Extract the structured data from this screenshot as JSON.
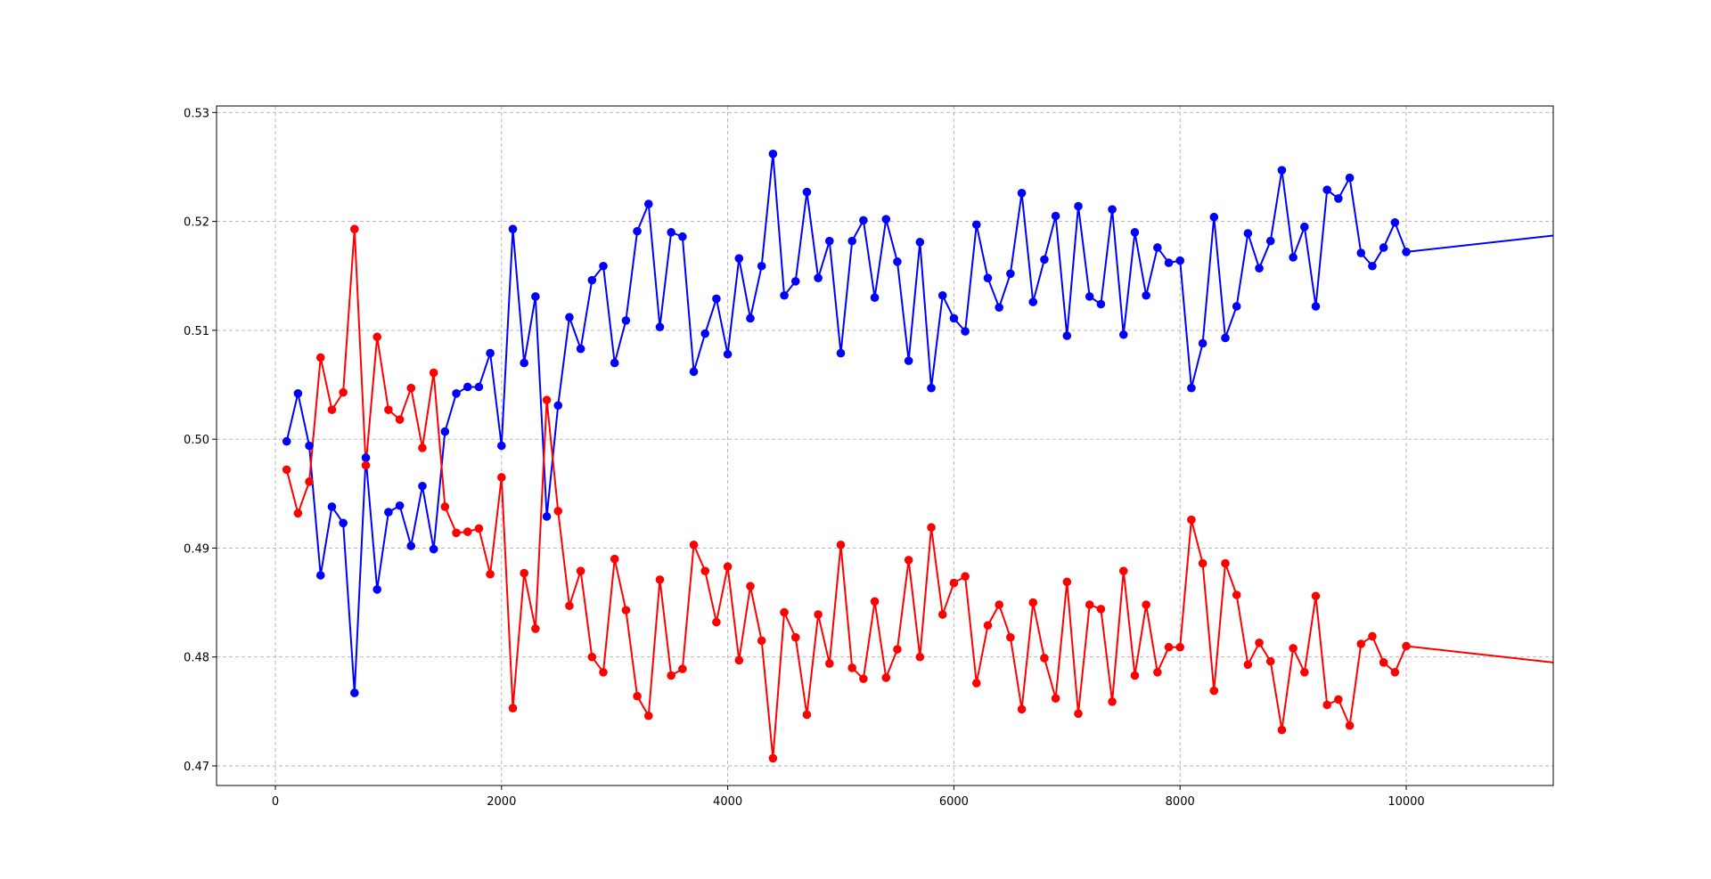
{
  "chart_data": {
    "type": "line",
    "title": "",
    "xlabel": "",
    "ylabel": "",
    "xlim": [
      -520,
      11300
    ],
    "ylim": [
      0.4682,
      0.5306
    ],
    "xticks": [
      0,
      2000,
      4000,
      6000,
      8000,
      10000
    ],
    "yticks": [
      0.47,
      0.48,
      0.49,
      0.5,
      0.51,
      0.52,
      0.53
    ],
    "xtick_labels": [
      "0",
      "2000",
      "4000",
      "6000",
      "8000",
      "10000"
    ],
    "ytick_labels": [
      "0.47",
      "0.48",
      "0.49",
      "0.50",
      "0.51",
      "0.52",
      "0.53"
    ],
    "grid": true,
    "x": [
      100,
      200,
      300,
      400,
      500,
      600,
      700,
      800,
      900,
      1000,
      1100,
      1200,
      1300,
      1400,
      1500,
      1600,
      1700,
      1800,
      1900,
      2000,
      2100,
      2200,
      2300,
      2400,
      2500,
      2600,
      2700,
      2800,
      2900,
      3000,
      3100,
      3200,
      3300,
      3400,
      3500,
      3600,
      3700,
      3800,
      3900,
      4000,
      4100,
      4200,
      4300,
      4400,
      4500,
      4600,
      4700,
      4800,
      4900,
      5000,
      5100,
      5200,
      5300,
      5400,
      5500,
      5600,
      5700,
      5800,
      5900,
      6000,
      6100,
      6200,
      6300,
      6400,
      6500,
      6600,
      6700,
      6800,
      6900,
      7000,
      7100,
      7200,
      7300,
      7400,
      7500,
      7600,
      7700,
      7800,
      7900,
      8000,
      8100,
      8200,
      8300,
      8400,
      8500,
      8600,
      8700,
      8800,
      8900,
      9000,
      9100,
      9200,
      9300,
      9400,
      9500,
      9600,
      9700,
      9800,
      9900,
      10000
    ],
    "series": [
      {
        "color": "#0000ff",
        "values": [
          0.4998,
          0.5042,
          0.4994,
          0.4875,
          0.4938,
          0.4923,
          0.4767,
          0.4983,
          0.4862,
          0.4933,
          0.4939,
          0.4902,
          0.4957,
          0.4899,
          0.5007,
          0.5042,
          0.5048,
          0.5048,
          0.5079,
          0.4994,
          0.5193,
          0.507,
          0.5131,
          0.4929,
          0.5031,
          0.5112,
          0.5083,
          0.5146,
          0.5159,
          0.507,
          0.5109,
          0.5191,
          0.5216,
          0.5103,
          0.519,
          0.5186,
          0.5062,
          0.5097,
          0.5129,
          0.5078,
          0.5166,
          0.5111,
          0.5159,
          0.5262,
          0.5132,
          0.5145,
          0.5227,
          0.5148,
          0.5182,
          0.5079,
          0.5182,
          0.5201,
          0.513,
          0.5202,
          0.5163,
          0.5072,
          0.5181,
          0.5047,
          0.5132,
          0.5111,
          0.5099,
          0.5197,
          0.5148,
          0.5121,
          0.5152,
          0.5226,
          0.5126,
          0.5165,
          0.5205,
          0.5095,
          0.5214,
          0.5131,
          0.5124,
          0.5211,
          0.5096,
          0.519,
          0.5132,
          0.5176,
          0.5162,
          0.5164,
          0.5047,
          0.5088,
          0.5204,
          0.5093,
          0.5122,
          0.5189,
          0.5157,
          0.5182,
          0.5247,
          0.5167,
          0.5195,
          0.5122,
          0.5229,
          0.5221,
          0.524,
          0.5171,
          0.5159,
          0.5176,
          0.5199,
          0.5172
        ],
        "extension": [
          11300,
          0.5187
        ]
      },
      {
        "color": "#ff0000",
        "values": [
          0.4972,
          0.4932,
          0.4961,
          0.5075,
          0.5027,
          0.5043,
          0.5193,
          0.4976,
          0.5094,
          0.5027,
          0.5018,
          0.5047,
          0.4992,
          0.5061,
          0.4938,
          0.4914,
          0.4915,
          0.4918,
          0.4876,
          0.4965,
          0.4753,
          0.4877,
          0.4826,
          0.5036,
          0.4934,
          0.4847,
          0.4879,
          0.48,
          0.4786,
          0.489,
          0.4843,
          0.4764,
          0.4746,
          0.4871,
          0.4783,
          0.4789,
          0.4903,
          0.4879,
          0.4832,
          0.4883,
          0.4797,
          0.4865,
          0.4815,
          0.4707,
          0.4841,
          0.4818,
          0.4747,
          0.4839,
          0.4794,
          0.4903,
          0.479,
          0.478,
          0.4851,
          0.4781,
          0.4807,
          0.4889,
          0.48,
          0.4919,
          0.4839,
          0.4868,
          0.4874,
          0.4776,
          0.4829,
          0.4848,
          0.4818,
          0.4752,
          0.485,
          0.4799,
          0.4762,
          0.4869,
          0.4748,
          0.4848,
          0.4844,
          0.4759,
          0.4879,
          0.4783,
          0.4848,
          0.4786,
          0.4809,
          0.4809,
          0.4926,
          0.4886,
          0.4769,
          0.4886,
          0.4857,
          0.4793,
          0.4813,
          0.4796,
          0.4733,
          0.4808,
          0.4786,
          0.4856,
          0.4756,
          0.4761,
          0.4737,
          0.4812,
          0.4819,
          0.4795,
          0.4786,
          0.481
        ],
        "extension": [
          11300,
          0.4795
        ]
      }
    ]
  }
}
